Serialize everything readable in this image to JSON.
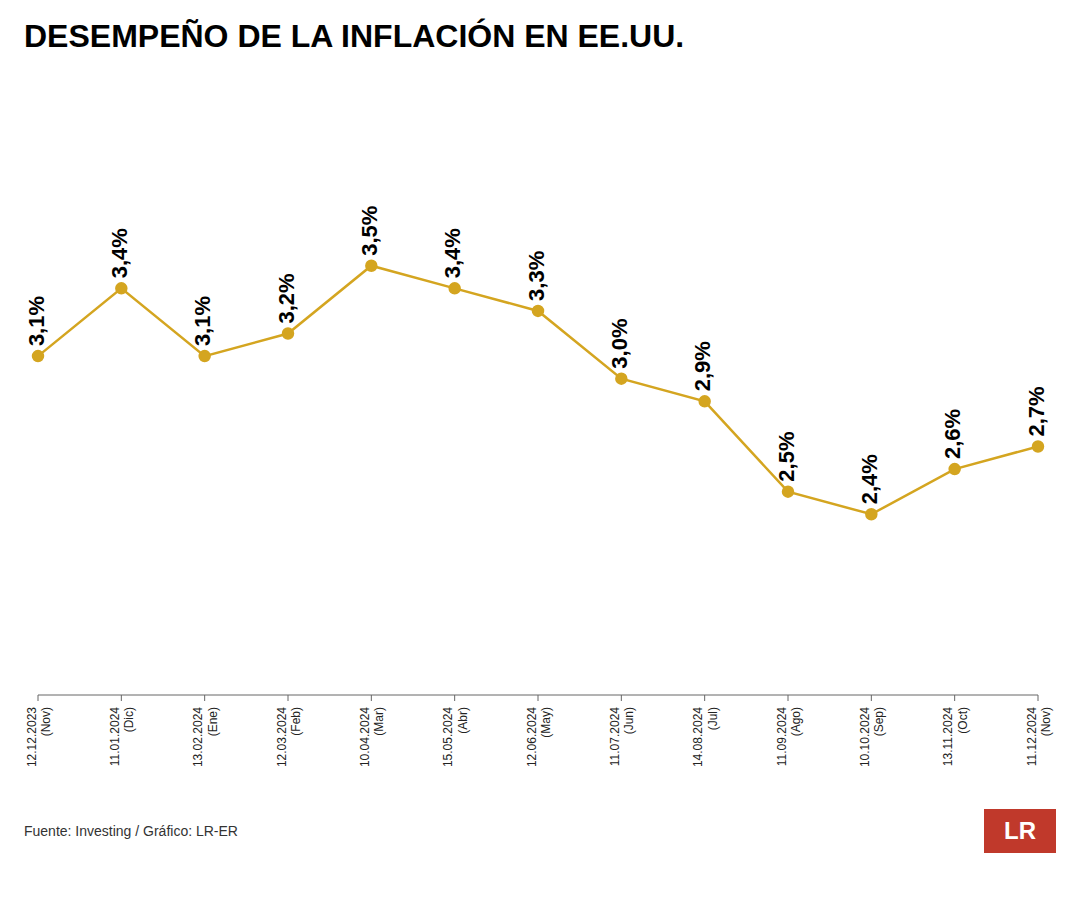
{
  "chart_data": {
    "type": "line",
    "title": "DESEMPEÑO DE LA INFLACIÓN EN EE.UU.",
    "categories": [
      "12.12.2023\n(Nov)",
      "11.01.2024\n(Dic)",
      "13.02.2024\n(Ene)",
      "12.03.2024\n(Feb)",
      "10.04.2024\n(Mar)",
      "15.05.2024\n(Abr)",
      "12.06.2024\n(May)",
      "11.07.2024\n(Jun)",
      "14.08.2024\n(Jul)",
      "11.09.2024\n(Ago)",
      "10.10.2024\n(Sep)",
      "13.11.2024\n(Oct)",
      "11.12.2024\n(Nov)"
    ],
    "values": [
      3.1,
      3.4,
      3.1,
      3.2,
      3.5,
      3.4,
      3.3,
      3.0,
      2.9,
      2.5,
      2.4,
      2.6,
      2.7
    ],
    "value_labels": [
      "3,1%",
      "3,4%",
      "3,1%",
      "3,2%",
      "3,5%",
      "3,4%",
      "3,3%",
      "3,0%",
      "2,9%",
      "2,5%",
      "2,4%",
      "2,6%",
      "2,7%"
    ],
    "color": "#D4A520",
    "marker": "circle",
    "ylim": [
      1.6,
      4.3
    ],
    "data_labels": true,
    "tick_labels": "x",
    "grid": false,
    "annotations": [
      "Fuente: Investing / Gráfico: LR-ER",
      "LR"
    ]
  }
}
